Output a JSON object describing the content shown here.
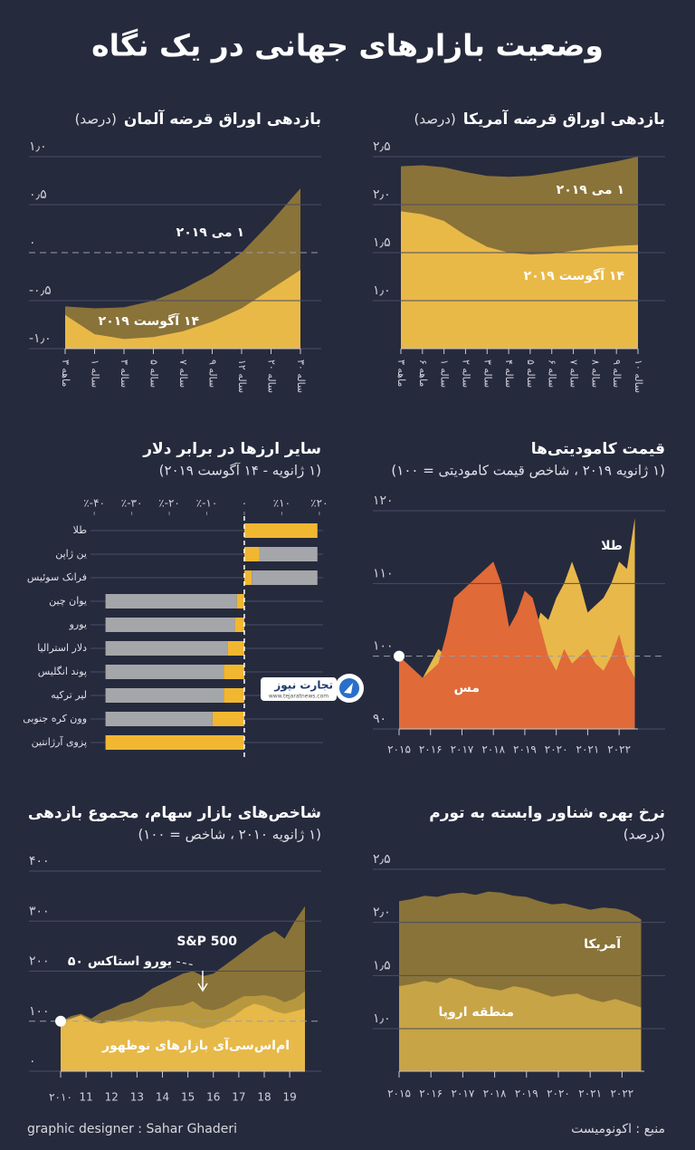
{
  "title": "وضعیت بازارهای جهانی در یک نگاه",
  "source": "منبع : اکونومیست",
  "designer": "graphic designer : Sahar Ghaderi",
  "logo": {
    "name": "تجارت نیوز",
    "url": "www.tejaratnews.com"
  },
  "chart_data": [
    {
      "type": "area",
      "title": "بازدهی اوراق قرضه آمریکا",
      "subtitle": "(درصد)",
      "categories": [
        "۳ ماهه",
        "۶ ماهه",
        "۱ ساله",
        "۲ ساله",
        "۳ ساله",
        "۴ ساله",
        "۵ ساله",
        "۶ ساله",
        "۷ ساله",
        "۸ ساله",
        "۹ ساله",
        "۱۰ ساله"
      ],
      "series": [
        {
          "name": "۱ می ۲۰۱۹",
          "color": "#8a7338",
          "values": [
            2.4,
            2.41,
            2.39,
            2.34,
            2.3,
            2.29,
            2.3,
            2.33,
            2.37,
            2.41,
            2.45,
            2.5
          ]
        },
        {
          "name": "۱۴ آگوست ۲۰۱۹",
          "color": "#e9b948",
          "values": [
            1.93,
            1.9,
            1.83,
            1.68,
            1.56,
            1.5,
            1.48,
            1.49,
            1.52,
            1.55,
            1.57,
            1.58
          ]
        }
      ],
      "ylim": [
        0.5,
        2.5
      ],
      "yticks": [
        {
          "value": 1.0,
          "label": "۱٫۰"
        },
        {
          "value": 1.5,
          "label": "۱٫۵"
        },
        {
          "value": 2.0,
          "label": "۲٫۰"
        },
        {
          "value": 2.5,
          "label": "۲٫۵"
        }
      ],
      "grid": true
    },
    {
      "type": "area",
      "title": "بازدهی اوراق قرضه آلمان",
      "subtitle": "(درصد)",
      "categories": [
        "۳ ماهه",
        "۱ ساله",
        "۳ ساله",
        "۵ ساله",
        "۷ ساله",
        "۹ ساله",
        "۱۲ ساله",
        "۲۰ ساله",
        "۳۰ ساله"
      ],
      "series": [
        {
          "name": "۱ می ۲۰۱۹",
          "color": "#8a7338",
          "values": [
            -0.56,
            -0.58,
            -0.57,
            -0.5,
            -0.38,
            -0.22,
            0.0,
            0.32,
            0.67
          ]
        },
        {
          "name": "۱۴ آگوست ۲۰۱۹",
          "color": "#e9b948",
          "values": [
            -0.65,
            -0.85,
            -0.9,
            -0.88,
            -0.82,
            -0.72,
            -0.58,
            -0.38,
            -0.18
          ]
        }
      ],
      "ylim": [
        -1.0,
        1.0
      ],
      "yticks": [
        {
          "value": -1.0,
          "label": "-۱٫۰"
        },
        {
          "value": -0.5,
          "label": "-۰٫۵"
        },
        {
          "value": 0,
          "label": "۰"
        },
        {
          "value": 0.5,
          "label": "۰٫۵"
        },
        {
          "value": 1.0,
          "label": "۱٫۰"
        }
      ],
      "reference_line": 0,
      "grid": true
    },
    {
      "type": "bar",
      "orientation": "horizontal",
      "stacked": true,
      "title": "سایر ارزها در برابر دلار",
      "subtitle": "(۱ ژانویه - ۱۴ آگوست ۲۰۱۹)",
      "categories": [
        "طلا",
        "ین ژاپن",
        "فرانک سوئیس",
        "یوان چین",
        "یورو",
        "دلار استرالیا",
        "پوند انگلیس",
        "لیر ترکیه",
        "وون کره جنوبی",
        "پزوی آرژانتین"
      ],
      "series": [
        {
          "color": "#f2b731",
          "values": [
            19.5,
            4,
            2,
            -2,
            -2.5,
            -4.5,
            -5.5,
            -5.5,
            -8.5,
            -37
          ]
        },
        {
          "color": "#a5a6a9",
          "values": [
            0,
            15.5,
            17.5,
            -35,
            -34.5,
            -32.5,
            -31.5,
            -31.5,
            -28.5,
            0
          ]
        }
      ],
      "xlim": [
        -41,
        21
      ],
      "xticks": [
        {
          "value": -40,
          "label": "٪-۴۰"
        },
        {
          "value": -30,
          "label": "٪-۳۰"
        },
        {
          "value": -20,
          "label": "٪-۲۰"
        },
        {
          "value": -10,
          "label": "٪-۱۰"
        },
        {
          "value": 0,
          "label": "۰"
        },
        {
          "value": 10,
          "label": "٪۱۰"
        },
        {
          "value": 20,
          "label": "٪۲۰"
        }
      ],
      "reference_line": 0
    },
    {
      "type": "area",
      "title": "قیمت کامودیتی‌ها",
      "subtitle": "(۱ ژانویه ۲۰۱۹ ، شاخص قیمت کامودیتی = ۱۰۰)",
      "x": [
        2015,
        2015.25,
        2015.5,
        2015.75,
        2016,
        2016.25,
        2016.5,
        2016.75,
        2017,
        2017.25,
        2017.5,
        2017.75,
        2018,
        2018.25,
        2018.5,
        2018.75,
        2019,
        2019.25,
        2019.5,
        2019.75,
        2020,
        2020.25,
        2020.5,
        2020.75,
        2021,
        2021.25,
        2021.5,
        2021.75,
        2022,
        2022.25,
        2022.5
      ],
      "series": [
        {
          "name": "طلا",
          "color": "#e8b84a",
          "values": [
            100,
            99,
            98,
            97,
            99,
            101,
            100,
            99,
            99,
            100,
            100,
            101,
            100,
            99,
            98,
            99,
            100,
            102,
            106,
            105,
            108,
            110,
            113,
            110,
            106,
            107,
            108,
            110,
            113,
            112,
            119
          ]
        },
        {
          "name": "مس",
          "color": "#e06a38",
          "values": [
            100,
            99,
            98,
            97,
            98,
            99,
            103,
            108,
            109,
            110,
            111,
            112,
            113,
            110,
            104,
            106,
            109,
            108,
            104,
            100,
            98,
            101,
            99,
            100,
            101,
            99,
            98,
            100,
            103,
            99,
            97
          ]
        }
      ],
      "xlim": [
        2015,
        2022.6
      ],
      "xticks": [
        {
          "value": 2015,
          "label": "۲۰۱۵"
        },
        {
          "value": 2016,
          "label": "۲۰۱۶"
        },
        {
          "value": 2017,
          "label": "۲۰۱۷"
        },
        {
          "value": 2018,
          "label": "۲۰۱۸"
        },
        {
          "value": 2019,
          "label": "۲۰۱۹"
        },
        {
          "value": 2020,
          "label": "۲۰۲۰"
        },
        {
          "value": 2021,
          "label": "۲۰۲۱"
        },
        {
          "value": 2022,
          "label": "۲۰۲۲"
        }
      ],
      "ylim": [
        90,
        120
      ],
      "yticks": [
        {
          "value": 90,
          "label": "۹۰"
        },
        {
          "value": 100,
          "label": "۱۰۰"
        },
        {
          "value": 110,
          "label": "۱۱۰"
        },
        {
          "value": 120,
          "label": "۱۲۰"
        }
      ],
      "reference_line": 100,
      "grid": true
    },
    {
      "type": "area",
      "title": "شاخص‌های بازار سهام، مجموع بازدهی",
      "subtitle": "(۱ ژانویه ۲۰۱۰ ، شاخص = ۱۰۰)",
      "x": [
        2010,
        2010.4,
        2010.8,
        2011.2,
        2011.6,
        2012,
        2012.4,
        2012.8,
        2013.2,
        2013.6,
        2014,
        2014.4,
        2014.8,
        2015.2,
        2015.6,
        2016,
        2016.4,
        2016.8,
        2017.2,
        2017.6,
        2018,
        2018.4,
        2018.8,
        2019.2,
        2019.6
      ],
      "series": [
        {
          "name": "S&P 500",
          "color": "#8a7338",
          "values": [
            100,
            110,
            115,
            105,
            118,
            125,
            135,
            140,
            150,
            165,
            175,
            185,
            195,
            200,
            190,
            195,
            210,
            225,
            240,
            255,
            270,
            280,
            265,
            300,
            330
          ]
        },
        {
          "name": "یورو استاکس ۵۰",
          "color": "#b8983f",
          "values": [
            100,
            102,
            108,
            98,
            96,
            100,
            104,
            110,
            118,
            125,
            128,
            130,
            132,
            140,
            125,
            122,
            128,
            140,
            150,
            150,
            152,
            148,
            138,
            145,
            160
          ]
        },
        {
          "name": "ام‌اس‌سی‌آی بازارهای نوظهور",
          "color": "#e6b949",
          "values": [
            100,
            105,
            112,
            100,
            95,
            100,
            98,
            102,
            100,
            98,
            102,
            100,
            98,
            90,
            85,
            90,
            100,
            110,
            125,
            135,
            130,
            120,
            115,
            120,
            125
          ]
        }
      ],
      "xlim": [
        2010,
        2019.6
      ],
      "xticks": [
        {
          "value": 2010,
          "label": "۲۰۱۰"
        },
        {
          "value": 2011,
          "label": "11"
        },
        {
          "value": 2012,
          "label": "12"
        },
        {
          "value": 2013,
          "label": "13"
        },
        {
          "value": 2014,
          "label": "14"
        },
        {
          "value": 2015,
          "label": "15"
        },
        {
          "value": 2016,
          "label": "16"
        },
        {
          "value": 2017,
          "label": "17"
        },
        {
          "value": 2018,
          "label": "18"
        },
        {
          "value": 2019,
          "label": "19"
        }
      ],
      "ylim": [
        0,
        400
      ],
      "yticks": [
        {
          "value": 0,
          "label": "۰"
        },
        {
          "value": 100,
          "label": "۱۰۰"
        },
        {
          "value": 200,
          "label": "۲۰۰"
        },
        {
          "value": 300,
          "label": "۳۰۰"
        },
        {
          "value": 400,
          "label": "۴۰۰"
        }
      ],
      "reference_line": 100,
      "grid": true
    },
    {
      "type": "area",
      "title": "نرخ بهره شناور وابسته به تورم",
      "subtitle": "(درصد)",
      "x": [
        2015,
        2015.4,
        2015.8,
        2016.2,
        2016.6,
        2017,
        2017.4,
        2017.8,
        2018.2,
        2018.6,
        2019,
        2019.4,
        2019.8,
        2020.2,
        2020.6,
        2021,
        2021.4,
        2021.8,
        2022.2,
        2022.6
      ],
      "series": [
        {
          "name": "آمریکا",
          "color": "#8a7338",
          "values": [
            2.2,
            2.22,
            2.25,
            2.24,
            2.27,
            2.28,
            2.26,
            2.29,
            2.28,
            2.25,
            2.24,
            2.2,
            2.17,
            2.18,
            2.15,
            2.12,
            2.14,
            2.13,
            2.1,
            2.03
          ]
        },
        {
          "name": "منطقه اروپا",
          "color": "#c7a445",
          "values": [
            1.4,
            1.42,
            1.45,
            1.43,
            1.48,
            1.45,
            1.4,
            1.38,
            1.36,
            1.4,
            1.38,
            1.34,
            1.3,
            1.32,
            1.33,
            1.28,
            1.25,
            1.28,
            1.24,
            1.2
          ]
        }
      ],
      "xlim": [
        2015,
        2022.7
      ],
      "xticks": [
        {
          "value": 2015,
          "label": "۲۰۱۵"
        },
        {
          "value": 2016,
          "label": "۲۰۱۶"
        },
        {
          "value": 2017,
          "label": "۲۰۱۷"
        },
        {
          "value": 2018,
          "label": "۲۰۱۸"
        },
        {
          "value": 2019,
          "label": "۲۰۱۹"
        },
        {
          "value": 2020,
          "label": "۲۰۲۰"
        },
        {
          "value": 2021,
          "label": "۲۰۲۱"
        },
        {
          "value": 2022,
          "label": "۲۰۲۲"
        }
      ],
      "ylim": [
        0.6,
        2.5
      ],
      "yticks": [
        {
          "value": 1.0,
          "label": "۱٫۰"
        },
        {
          "value": 1.5,
          "label": "۱٫۵"
        },
        {
          "value": 2.0,
          "label": "۲٫۰"
        },
        {
          "value": 2.5,
          "label": "۲٫۵"
        }
      ],
      "grid": true
    }
  ]
}
